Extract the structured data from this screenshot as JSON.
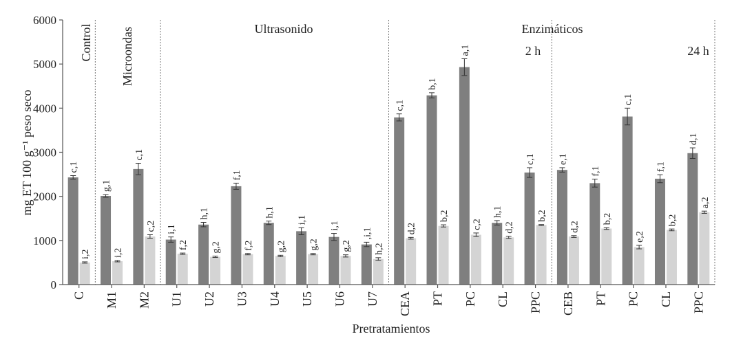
{
  "chart_data": {
    "type": "bar",
    "ylabel": "mg ET 100 g⁻¹ peso seco",
    "xlabel": "Pretratamientos",
    "ylim": [
      0,
      6000
    ],
    "yticks": [
      0,
      1000,
      2000,
      3000,
      4000,
      5000,
      6000
    ],
    "grid": false,
    "categories": [
      "C",
      "M1",
      "M2",
      "U1",
      "U2",
      "U3",
      "U4",
      "U5",
      "U6",
      "U7",
      "CEA",
      "PT",
      "PC",
      "CL",
      "PPC",
      "CEB",
      "PT",
      "PC",
      "CL",
      "PPC"
    ],
    "series": [
      {
        "color": "#7f7f7f",
        "values": [
          2430,
          2010,
          2620,
          1020,
          1360,
          2230,
          1400,
          1210,
          1080,
          910,
          3790,
          4290,
          4930,
          1400,
          2540,
          2600,
          2300,
          3810,
          2400,
          2980
        ],
        "errors": [
          40,
          30,
          130,
          60,
          50,
          70,
          40,
          80,
          80,
          50,
          80,
          60,
          190,
          50,
          110,
          50,
          90,
          190,
          90,
          120
        ],
        "labels": [
          "c,1",
          "g,1",
          "c,1",
          "i,1",
          "h,1",
          "f,1",
          "h,1",
          "i,1",
          "i,1",
          ",i,1",
          "c,1",
          "b,1",
          "a,1",
          "h,1",
          "c,1",
          "e,1",
          "f,1",
          "c,1",
          "f,1",
          "d,1"
        ]
      },
      {
        "color": "#d4d4d4",
        "values": [
          500,
          530,
          1090,
          700,
          630,
          690,
          650,
          690,
          650,
          580,
          1050,
          1330,
          1130,
          1070,
          1350,
          1090,
          1270,
          850,
          1240,
          1640
        ],
        "errors": [
          15,
          15,
          40,
          15,
          15,
          15,
          15,
          15,
          25,
          30,
          20,
          25,
          40,
          25,
          10,
          20,
          20,
          40,
          20,
          25
        ],
        "labels": [
          "i,2",
          "i,2",
          "c,2",
          "f,2",
          "g,2",
          "f,2",
          "g,2",
          "g,2",
          "g,2",
          "h,2",
          "d,2",
          "b,2",
          "c,2",
          "d,2",
          "b,2",
          "d,2",
          "b,2",
          "e,2",
          "b,2",
          "a,2"
        ]
      }
    ],
    "section_labels": [
      "Control",
      "Microondas",
      "Ultrasonido",
      "Enzimáticos",
      "2 h",
      "24 h"
    ]
  }
}
